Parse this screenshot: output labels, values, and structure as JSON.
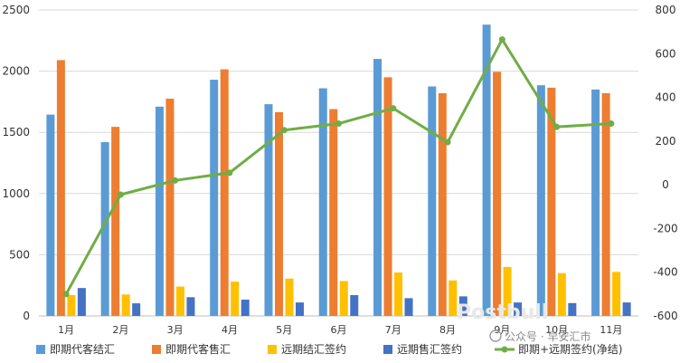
{
  "chart_data": {
    "type": "bar",
    "categories": [
      "1月",
      "2月",
      "3月",
      "4月",
      "5月",
      "6月",
      "7月",
      "8月",
      "9月",
      "10月",
      "11月"
    ],
    "series": [
      {
        "name": "即期代客结汇",
        "type": "bar",
        "axis": "left",
        "color": "#5b9bd5",
        "values": [
          1645,
          1420,
          1710,
          1930,
          1730,
          1860,
          2100,
          1875,
          2380,
          1885,
          1850
        ]
      },
      {
        "name": "即期代客售汇",
        "type": "bar",
        "axis": "left",
        "color": "#ed7d31",
        "values": [
          2090,
          1545,
          1775,
          2015,
          1665,
          1690,
          1950,
          1820,
          1995,
          1865,
          1820
        ]
      },
      {
        "name": "远期结汇签约",
        "type": "bar",
        "axis": "left",
        "color": "#ffc000",
        "values": [
          170,
          175,
          240,
          280,
          305,
          285,
          355,
          290,
          400,
          350,
          360
        ]
      },
      {
        "name": "远期售汇签约",
        "type": "bar",
        "axis": "left",
        "color": "#4472c4",
        "values": [
          228,
          103,
          153,
          133,
          110,
          170,
          145,
          160,
          110,
          105,
          110
        ]
      },
      {
        "name": "即期+远期签约(净结)",
        "type": "line",
        "axis": "right",
        "color": "#70ad47",
        "values": [
          -500,
          -45,
          20,
          55,
          250,
          280,
          350,
          195,
          665,
          265,
          280
        ]
      }
    ],
    "y_left": {
      "min": 0,
      "max": 2500,
      "ticks": [
        0,
        500,
        1000,
        1500,
        2000,
        2500
      ]
    },
    "y_right": {
      "min": -600,
      "max": 800,
      "ticks": [
        -600,
        -400,
        -200,
        0,
        200,
        400,
        600,
        800
      ]
    },
    "grid": true,
    "legend_position": "bottom"
  },
  "watermark": {
    "text": "公众号 · 早安汇市",
    "logo_text": "Postbull"
  }
}
